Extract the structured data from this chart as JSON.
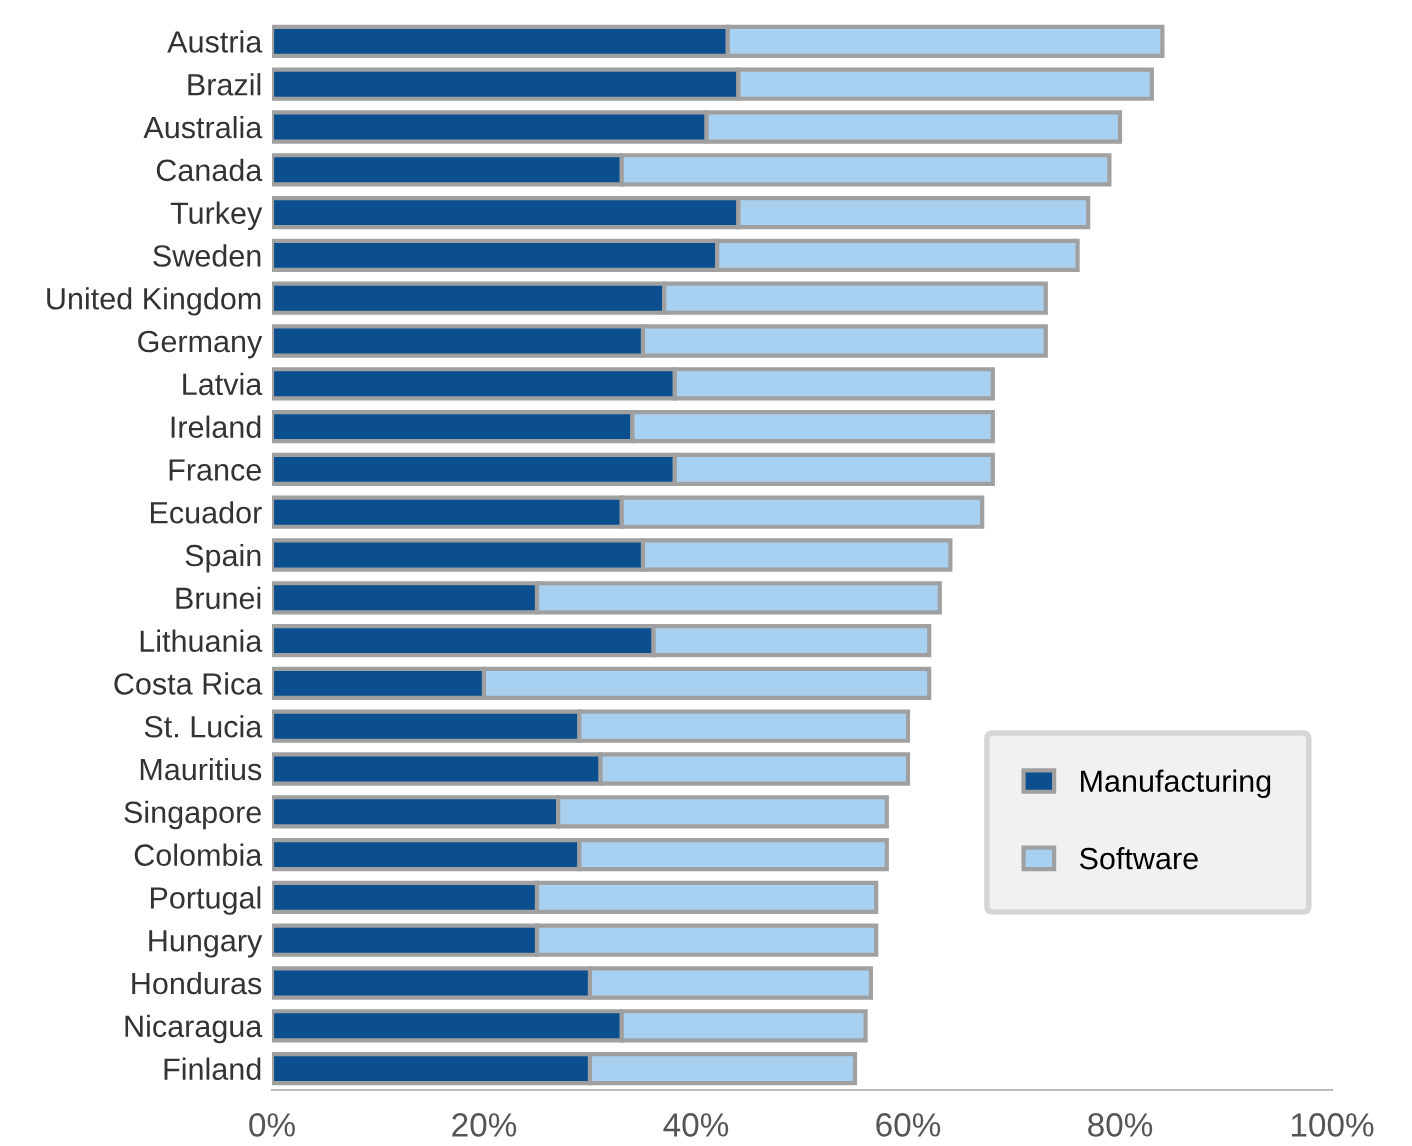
{
  "chart_data": {
    "type": "bar",
    "orientation": "horizontal",
    "stacked": true,
    "categories": [
      "Austria",
      "Brazil",
      "Australia",
      "Canada",
      "Turkey",
      "Sweden",
      "United Kingdom",
      "Germany",
      "Latvia",
      "Ireland",
      "France",
      "Ecuador",
      "Spain",
      "Brunei",
      "Lithuania",
      "Costa Rica",
      "St. Lucia",
      "Mauritius",
      "Singapore",
      "Colombia",
      "Portugal",
      "Hungary",
      "Honduras",
      "Nicaragua",
      "Finland"
    ],
    "series": [
      {
        "name": "Manufacturing",
        "color": "#0b4f8e",
        "values": [
          43,
          44,
          41,
          33,
          44,
          42,
          37,
          35,
          38,
          34,
          38,
          33,
          35,
          25,
          36,
          20,
          29,
          31,
          27,
          29,
          25,
          25,
          30,
          33,
          30
        ]
      },
      {
        "name": "Software",
        "color": "#a8d0f0",
        "values": [
          41,
          39,
          39,
          46,
          33,
          34,
          36,
          38,
          30,
          34,
          30,
          34,
          29,
          38,
          26,
          42,
          31,
          29,
          31,
          29,
          32,
          32,
          26.5,
          23,
          25
        ]
      }
    ],
    "xlim": [
      0,
      100
    ],
    "xticks": [
      {
        "value": 0,
        "label": "0%"
      },
      {
        "value": 20,
        "label": "20%"
      },
      {
        "value": 40,
        "label": "40%"
      },
      {
        "value": 60,
        "label": "60%"
      },
      {
        "value": 80,
        "label": "80%"
      },
      {
        "value": 100,
        "label": "100%"
      }
    ],
    "grid": false,
    "legend": "right"
  }
}
